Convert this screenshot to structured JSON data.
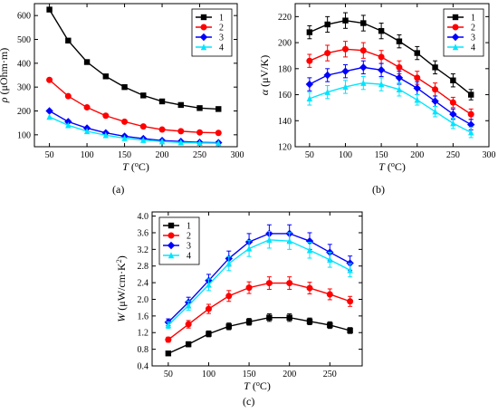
{
  "panels": [
    {
      "label": "(a)"
    },
    {
      "label": "(b)"
    },
    {
      "label": "(c)"
    }
  ],
  "chart_data": [
    {
      "type": "line",
      "panel": "(a)",
      "xlabel": "T (°C)",
      "ylabel": "ρ (μOhm·m)",
      "xlim": [
        30,
        300
      ],
      "ylim": [
        50,
        650
      ],
      "xticks": [
        50,
        100,
        150,
        200,
        250,
        300
      ],
      "yticks": [
        100,
        200,
        300,
        400,
        500,
        600
      ],
      "legend_position": "top-right",
      "x": [
        50,
        75,
        100,
        125,
        150,
        175,
        200,
        225,
        250,
        275
      ],
      "series": [
        {
          "name": "1",
          "color": "#000000",
          "marker": "square",
          "values": [
            625,
            495,
            405,
            345,
            300,
            265,
            240,
            225,
            212,
            208
          ],
          "errors": [
            0,
            0,
            0,
            0,
            0,
            0,
            0,
            0,
            0,
            0
          ]
        },
        {
          "name": "2",
          "color": "#ff0000",
          "marker": "circle",
          "values": [
            330,
            262,
            215,
            180,
            155,
            135,
            122,
            115,
            110,
            108
          ],
          "errors": [
            0,
            0,
            0,
            0,
            0,
            0,
            0,
            0,
            0,
            0
          ]
        },
        {
          "name": "3",
          "color": "#0000ff",
          "marker": "diamond",
          "values": [
            200,
            155,
            128,
            108,
            94,
            84,
            76,
            72,
            68,
            67
          ],
          "errors": [
            0,
            0,
            0,
            0,
            0,
            0,
            0,
            0,
            0,
            0
          ]
        },
        {
          "name": "4",
          "color": "#00e5ff",
          "marker": "triangle",
          "values": [
            175,
            140,
            115,
            98,
            86,
            78,
            72,
            68,
            66,
            65
          ],
          "errors": [
            0,
            0,
            0,
            0,
            0,
            0,
            0,
            0,
            0,
            0
          ]
        }
      ]
    },
    {
      "type": "line",
      "panel": "(b)",
      "xlabel": "T (°C)",
      "ylabel": "α (μV/K)",
      "xlim": [
        30,
        300
      ],
      "ylim": [
        120,
        230
      ],
      "xticks": [
        50,
        100,
        150,
        200,
        250,
        300
      ],
      "yticks": [
        120,
        140,
        160,
        180,
        200,
        220
      ],
      "legend_position": "top-right",
      "x": [
        50,
        75,
        100,
        125,
        150,
        175,
        200,
        225,
        250,
        275
      ],
      "series": [
        {
          "name": "1",
          "color": "#000000",
          "marker": "square",
          "values": [
            208,
            214,
            217,
            215,
            209,
            201,
            192,
            181,
            171,
            160
          ],
          "errors": [
            5,
            6,
            6,
            6,
            6,
            5,
            5,
            5,
            5,
            4
          ]
        },
        {
          "name": "2",
          "color": "#ff0000",
          "marker": "circle",
          "values": [
            186,
            192,
            195,
            194,
            189,
            181,
            173,
            164,
            154,
            145
          ],
          "errors": [
            5,
            6,
            6,
            6,
            5,
            5,
            5,
            5,
            4,
            4
          ]
        },
        {
          "name": "3",
          "color": "#0000ff",
          "marker": "diamond",
          "values": [
            168,
            175,
            178,
            181,
            179,
            173,
            165,
            155,
            145,
            137
          ],
          "errors": [
            5,
            5,
            5,
            5,
            5,
            5,
            5,
            4,
            4,
            4
          ]
        },
        {
          "name": "4",
          "color": "#00e5ff",
          "marker": "triangle",
          "values": [
            157,
            162,
            166,
            169,
            168,
            164,
            156,
            147,
            138,
            131
          ],
          "errors": [
            5,
            5,
            5,
            5,
            5,
            5,
            4,
            4,
            4,
            4
          ]
        }
      ]
    },
    {
      "type": "line",
      "panel": "(c)",
      "xlabel": "T (°C)",
      "ylabel": "W (μW/cm·K²)",
      "xlim": [
        30,
        290
      ],
      "ylim": [
        0.4,
        4.1
      ],
      "xticks": [
        50,
        100,
        150,
        200,
        250
      ],
      "yticks": [
        0.4,
        0.8,
        1.2,
        1.6,
        2.0,
        2.4,
        2.8,
        3.2,
        3.6,
        4.0
      ],
      "ytick_labels": [
        "0.4",
        "0.8",
        "1.2",
        "1.6",
        "2.0",
        "2.4",
        "2.8",
        "3.2",
        "3.6",
        "4.0"
      ],
      "legend_position": "top-left",
      "x": [
        50,
        75,
        100,
        125,
        150,
        175,
        200,
        225,
        250,
        275
      ],
      "series": [
        {
          "name": "1",
          "color": "#000000",
          "marker": "square",
          "values": [
            0.7,
            0.92,
            1.17,
            1.35,
            1.46,
            1.56,
            1.56,
            1.47,
            1.38,
            1.25
          ],
          "errors": [
            0.04,
            0.06,
            0.07,
            0.08,
            0.08,
            0.09,
            0.09,
            0.08,
            0.08,
            0.07
          ]
        },
        {
          "name": "2",
          "color": "#ff0000",
          "marker": "circle",
          "values": [
            1.03,
            1.4,
            1.77,
            2.08,
            2.28,
            2.39,
            2.39,
            2.27,
            2.12,
            1.95
          ],
          "errors": [
            0.06,
            0.09,
            0.11,
            0.13,
            0.14,
            0.15,
            0.15,
            0.14,
            0.13,
            0.12
          ]
        },
        {
          "name": "3",
          "color": "#0000ff",
          "marker": "diamond",
          "values": [
            1.45,
            1.93,
            2.45,
            2.98,
            3.38,
            3.58,
            3.58,
            3.4,
            3.13,
            2.87
          ],
          "errors": [
            0.08,
            0.12,
            0.15,
            0.18,
            0.2,
            0.21,
            0.21,
            0.2,
            0.19,
            0.17
          ]
        },
        {
          "name": "4",
          "color": "#00e5ff",
          "marker": "triangle",
          "values": [
            1.38,
            1.85,
            2.35,
            2.86,
            3.22,
            3.43,
            3.4,
            3.18,
            2.95,
            2.7
          ],
          "errors": [
            0.08,
            0.11,
            0.14,
            0.17,
            0.19,
            0.2,
            0.2,
            0.19,
            0.18,
            0.16
          ]
        }
      ]
    }
  ]
}
